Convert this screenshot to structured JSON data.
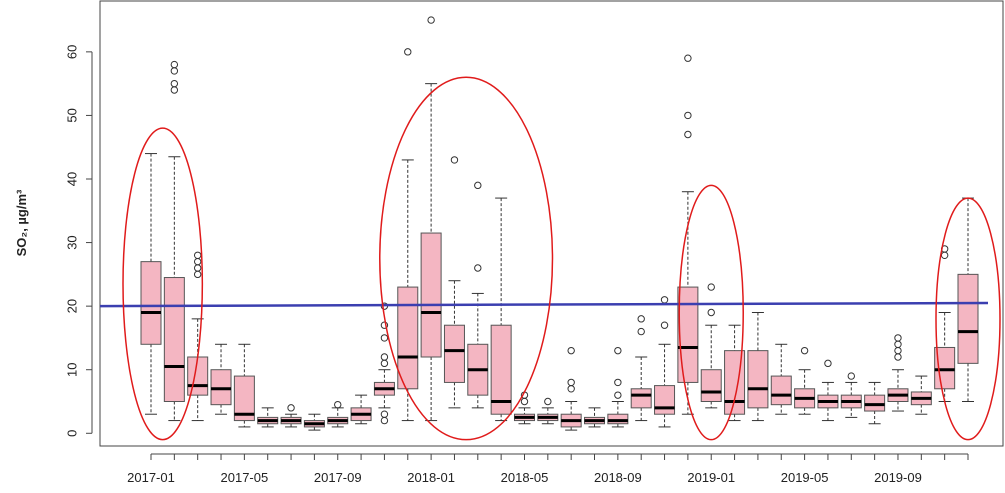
{
  "chart_data": {
    "type": "boxplot",
    "title": "",
    "xlabel": "",
    "ylabel": "SO₂, µg/m³",
    "ylim": [
      -2,
      68
    ],
    "y_ticks": [
      0,
      10,
      20,
      30,
      40,
      50,
      60
    ],
    "x_tick_labels": [
      "2017-01",
      "2017-05",
      "2017-09",
      "2018-01",
      "2018-05",
      "2018-09",
      "2019-01",
      "2019-05",
      "2019-09"
    ],
    "x_tick_label_months": [
      0,
      4,
      8,
      12,
      16,
      20,
      24,
      28,
      32
    ],
    "grid": false,
    "reference_line": {
      "y": 20,
      "y_end": 20.5,
      "color": "#3b3fb0"
    },
    "box_color": "#f4b6c2",
    "box_border": "#555555",
    "median_color": "#000000",
    "highlight_color": "#e01b1b",
    "highlights": [
      {
        "from": 0,
        "to": 1,
        "y_low": -1,
        "y_high": 48
      },
      {
        "from": 11,
        "to": 16,
        "y_low": -1,
        "y_high": 56
      },
      {
        "from": 24,
        "to": 24,
        "y_low": -1,
        "y_high": 39
      },
      {
        "from": 35,
        "to": 35,
        "y_low": -1,
        "y_high": 37
      }
    ],
    "series": [
      {
        "boxes": [
          {
            "month": "2017-01",
            "whisker_low": 3,
            "q1": 14,
            "median": 19,
            "q3": 27,
            "whisker_high": 44,
            "outliers": []
          },
          {
            "month": "2017-02",
            "whisker_low": 2,
            "q1": 5,
            "median": 10.5,
            "q3": 24.5,
            "whisker_high": 43.5,
            "outliers": [
              54,
              55,
              57,
              58
            ]
          },
          {
            "month": "2017-03",
            "whisker_low": 2,
            "q1": 6,
            "median": 7.5,
            "q3": 12,
            "whisker_high": 18,
            "outliers": [
              25,
              26,
              27,
              28
            ]
          },
          {
            "month": "2017-04",
            "whisker_low": 3,
            "q1": 4.5,
            "median": 7,
            "q3": 10,
            "whisker_high": 14,
            "outliers": []
          },
          {
            "month": "2017-05",
            "whisker_low": 1,
            "q1": 2,
            "median": 3,
            "q3": 9,
            "whisker_high": 14,
            "outliers": []
          },
          {
            "month": "2017-06",
            "whisker_low": 1,
            "q1": 1.5,
            "median": 2,
            "q3": 2.5,
            "whisker_high": 4,
            "outliers": []
          },
          {
            "month": "2017-07",
            "whisker_low": 1,
            "q1": 1.5,
            "median": 2,
            "q3": 2.5,
            "whisker_high": 3,
            "outliers": [
              4
            ]
          },
          {
            "month": "2017-08",
            "whisker_low": 0.5,
            "q1": 1,
            "median": 1.5,
            "q3": 2,
            "whisker_high": 3,
            "outliers": []
          },
          {
            "month": "2017-09",
            "whisker_low": 1,
            "q1": 1.5,
            "median": 2,
            "q3": 2.5,
            "whisker_high": 4,
            "outliers": [
              4.5
            ]
          },
          {
            "month": "2017-10",
            "whisker_low": 1.5,
            "q1": 2,
            "median": 3,
            "q3": 4,
            "whisker_high": 6,
            "outliers": []
          },
          {
            "month": "2017-11",
            "whisker_low": 4,
            "q1": 6,
            "median": 7,
            "q3": 8,
            "whisker_high": 10,
            "outliers": [
              2,
              3,
              11,
              12,
              15,
              17,
              20
            ]
          },
          {
            "month": "2017-12",
            "whisker_low": 2,
            "q1": 7,
            "median": 12,
            "q3": 23,
            "whisker_high": 43,
            "outliers": [
              60
            ]
          },
          {
            "month": "2018-01",
            "whisker_low": 2,
            "q1": 12,
            "median": 19,
            "q3": 31.5,
            "whisker_high": 55,
            "outliers": [
              65
            ]
          },
          {
            "month": "2018-02",
            "whisker_low": 4,
            "q1": 8,
            "median": 13,
            "q3": 17,
            "whisker_high": 24,
            "outliers": [
              43
            ]
          },
          {
            "month": "2018-03",
            "whisker_low": 4,
            "q1": 6,
            "median": 10,
            "q3": 14,
            "whisker_high": 22,
            "outliers": [
              26,
              39
            ]
          },
          {
            "month": "2018-04",
            "whisker_low": 2,
            "q1": 3,
            "median": 5,
            "q3": 17,
            "whisker_high": 37,
            "outliers": []
          },
          {
            "month": "2018-05",
            "whisker_low": 1.5,
            "q1": 2,
            "median": 2.5,
            "q3": 3,
            "whisker_high": 4,
            "outliers": [
              5,
              6
            ]
          },
          {
            "month": "2018-06",
            "whisker_low": 1.5,
            "q1": 2,
            "median": 2.5,
            "q3": 3,
            "whisker_high": 4,
            "outliers": [
              5
            ]
          },
          {
            "month": "2018-07",
            "whisker_low": 0.5,
            "q1": 1,
            "median": 2,
            "q3": 3,
            "whisker_high": 5,
            "outliers": [
              7,
              8,
              13
            ]
          },
          {
            "month": "2018-08",
            "whisker_low": 1,
            "q1": 1.5,
            "median": 2,
            "q3": 2.5,
            "whisker_high": 4,
            "outliers": []
          },
          {
            "month": "2018-09",
            "whisker_low": 1,
            "q1": 1.5,
            "median": 2,
            "q3": 3,
            "whisker_high": 5,
            "outliers": [
              6,
              8,
              13
            ]
          },
          {
            "month": "2018-10",
            "whisker_low": 2,
            "q1": 4,
            "median": 6,
            "q3": 7,
            "whisker_high": 12,
            "outliers": [
              16,
              18
            ]
          },
          {
            "month": "2018-11",
            "whisker_low": 1,
            "q1": 3,
            "median": 4,
            "q3": 7.5,
            "whisker_high": 14,
            "outliers": [
              17,
              21
            ]
          },
          {
            "month": "2018-12",
            "whisker_low": 3,
            "q1": 8,
            "median": 13.5,
            "q3": 23,
            "whisker_high": 38,
            "outliers": [
              47,
              50,
              59
            ]
          },
          {
            "month": "2019-01",
            "whisker_low": 4,
            "q1": 5,
            "median": 6.5,
            "q3": 10,
            "whisker_high": 17,
            "outliers": [
              19,
              23
            ]
          },
          {
            "month": "2019-02",
            "whisker_low": 2,
            "q1": 3,
            "median": 5,
            "q3": 13,
            "whisker_high": 17,
            "outliers": []
          },
          {
            "month": "2019-03",
            "whisker_low": 2,
            "q1": 4,
            "median": 7,
            "q3": 13,
            "whisker_high": 19,
            "outliers": []
          },
          {
            "month": "2019-04",
            "whisker_low": 3,
            "q1": 4.5,
            "median": 6,
            "q3": 9,
            "whisker_high": 14,
            "outliers": []
          },
          {
            "month": "2019-05",
            "whisker_low": 3,
            "q1": 4,
            "median": 5.5,
            "q3": 7,
            "whisker_high": 10,
            "outliers": [
              13
            ]
          },
          {
            "month": "2019-06",
            "whisker_low": 2,
            "q1": 4,
            "median": 5,
            "q3": 6,
            "whisker_high": 8,
            "outliers": [
              11
            ]
          },
          {
            "month": "2019-07",
            "whisker_low": 2.5,
            "q1": 4,
            "median": 5,
            "q3": 6,
            "whisker_high": 8,
            "outliers": [
              9
            ]
          },
          {
            "month": "2019-08",
            "whisker_low": 1.5,
            "q1": 3.5,
            "median": 4.5,
            "q3": 6,
            "whisker_high": 8,
            "outliers": []
          },
          {
            "month": "2019-09",
            "whisker_low": 3.5,
            "q1": 5,
            "median": 6,
            "q3": 7,
            "whisker_high": 10,
            "outliers": [
              12,
              13,
              14,
              15
            ]
          },
          {
            "month": "2019-10",
            "whisker_low": 3,
            "q1": 4.5,
            "median": 5.5,
            "q3": 6.5,
            "whisker_high": 9,
            "outliers": []
          },
          {
            "month": "2019-11",
            "whisker_low": 5,
            "q1": 7,
            "median": 10,
            "q3": 13.5,
            "whisker_high": 19,
            "outliers": [
              28,
              29
            ]
          },
          {
            "month": "2019-12",
            "whisker_low": 5,
            "q1": 11,
            "median": 16,
            "q3": 25,
            "whisker_high": 37,
            "outliers": []
          }
        ]
      }
    ]
  }
}
